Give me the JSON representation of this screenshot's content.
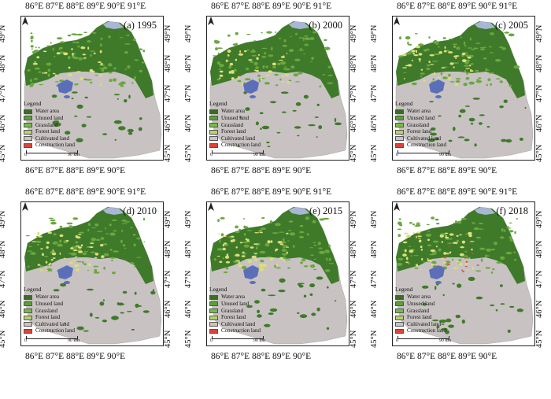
{
  "panels": [
    {
      "label": "(a) 1995"
    },
    {
      "label": "(b) 2000"
    },
    {
      "label": "(c) 2005"
    },
    {
      "label": "(d) 2010"
    },
    {
      "label": "(e) 2015"
    },
    {
      "label": "(f) 2018"
    }
  ],
  "lon_top": [
    "86°E",
    "87°E",
    "88°E",
    "89°E",
    "90°E",
    "91°E"
  ],
  "lon_bottom": [
    "86°E",
    "87°E",
    "88°E",
    "89°E",
    "90°E"
  ],
  "lat_left": [
    "49°N",
    "48°N",
    "47°N",
    "46°N",
    "45°N"
  ],
  "lat_right": [
    "49°N",
    "48°N",
    "47°N",
    "46°N",
    "45°N"
  ],
  "legend": {
    "title": "Legend",
    "items": [
      {
        "label": "Water area",
        "color": "#3d6b25"
      },
      {
        "label": "Unused land",
        "color": "#5aa03a"
      },
      {
        "label": "Grassland",
        "color": "#7ab84a"
      },
      {
        "label": "Forest land",
        "color": "#b4d26e"
      },
      {
        "label": "Cultivated land",
        "color": "#c9c3c3"
      },
      {
        "label": "Construction land",
        "color": "#d6453a"
      }
    ]
  },
  "scale": {
    "start": "0",
    "end": "90 km"
  },
  "colors": {
    "forest_dark": "#3f7a2a",
    "grass": "#6aa83f",
    "cultivated": "#dede7a",
    "unused": "#c8c2c2",
    "water": "#5b6fb8",
    "construction": "#d6453a"
  }
}
